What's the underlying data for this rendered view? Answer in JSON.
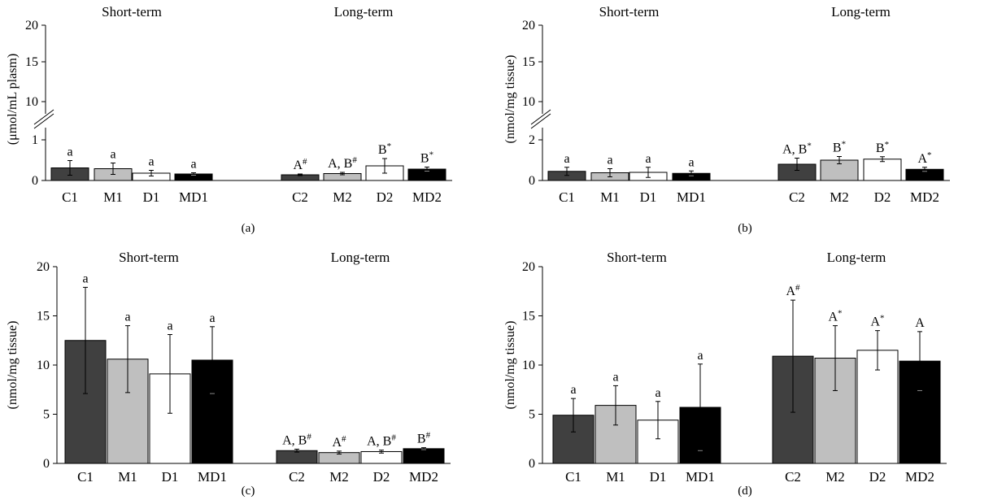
{
  "chart_data": [
    {
      "type": "bar",
      "panel_label": "(a)",
      "ylabel": "(μmol/mL plasm)",
      "broken_axis": true,
      "yticks_lower": [
        "0",
        "1"
      ],
      "yticks_upper": [
        "10",
        "15",
        "20"
      ],
      "group_titles": [
        "Short-term",
        "Long-term"
      ],
      "categories": [
        "C1",
        "M1",
        "D1",
        "MD1",
        "C2",
        "M2",
        "D2",
        "MD2"
      ],
      "values": [
        0.31,
        0.29,
        0.18,
        0.16,
        0.14,
        0.17,
        0.36,
        0.28
      ],
      "errors": [
        0.18,
        0.14,
        0.07,
        0.03,
        0.02,
        0.03,
        0.18,
        0.05
      ],
      "annotations": [
        {
          "text": "a",
          "sup": ""
        },
        {
          "text": "a",
          "sup": ""
        },
        {
          "text": "a",
          "sup": ""
        },
        {
          "text": "a",
          "sup": ""
        },
        {
          "text": "A",
          "sup": "#"
        },
        {
          "text": "A, B",
          "sup": "#"
        },
        {
          "text": "B",
          "sup": "*"
        },
        {
          "text": "B",
          "sup": "*"
        }
      ],
      "colors": [
        "#404040",
        "#bfbfbf",
        "#ffffff",
        "#000000",
        "#404040",
        "#bfbfbf",
        "#ffffff",
        "#000000"
      ]
    },
    {
      "type": "bar",
      "panel_label": "(b)",
      "ylabel": "(nmol/mg tissue)",
      "broken_axis": true,
      "yticks_lower": [
        "0",
        "2"
      ],
      "yticks_upper": [
        "10",
        "15",
        "20"
      ],
      "group_titles": [
        "Short-term",
        "Long-term"
      ],
      "categories": [
        "C1",
        "M1",
        "D1",
        "MD1",
        "C2",
        "M2",
        "D2",
        "MD2"
      ],
      "values": [
        0.45,
        0.38,
        0.4,
        0.35,
        0.8,
        1.0,
        1.05,
        0.55
      ],
      "errors": [
        0.2,
        0.2,
        0.25,
        0.12,
        0.3,
        0.18,
        0.12,
        0.1
      ],
      "annotations": [
        {
          "text": "a",
          "sup": ""
        },
        {
          "text": "a",
          "sup": ""
        },
        {
          "text": "a",
          "sup": ""
        },
        {
          "text": "a",
          "sup": ""
        },
        {
          "text": "A, B",
          "sup": "*"
        },
        {
          "text": "B",
          "sup": "*"
        },
        {
          "text": "B",
          "sup": "*"
        },
        {
          "text": "A",
          "sup": "*"
        }
      ],
      "colors": [
        "#404040",
        "#bfbfbf",
        "#ffffff",
        "#000000",
        "#404040",
        "#bfbfbf",
        "#ffffff",
        "#000000"
      ]
    },
    {
      "type": "bar",
      "panel_label": "(c)",
      "ylabel": "(nmol/mg tissue)",
      "broken_axis": false,
      "ylim": [
        0,
        20
      ],
      "yticks": [
        "0",
        "5",
        "10",
        "15",
        "20"
      ],
      "group_titles": [
        "Short-term",
        "Long-term"
      ],
      "categories": [
        "C1",
        "M1",
        "D1",
        "MD1",
        "C2",
        "M2",
        "D2",
        "MD2"
      ],
      "values": [
        12.5,
        10.6,
        9.1,
        10.5,
        1.3,
        1.1,
        1.2,
        1.5
      ],
      "errors": [
        5.4,
        3.4,
        4.0,
        3.4,
        0.15,
        0.15,
        0.15,
        0.1
      ],
      "annotations": [
        {
          "text": "a",
          "sup": ""
        },
        {
          "text": "a",
          "sup": ""
        },
        {
          "text": "a",
          "sup": ""
        },
        {
          "text": "a",
          "sup": ""
        },
        {
          "text": "A, B",
          "sup": "#"
        },
        {
          "text": "A",
          "sup": "#"
        },
        {
          "text": "A, B",
          "sup": "#"
        },
        {
          "text": "B",
          "sup": "#"
        }
      ],
      "colors": [
        "#404040",
        "#bfbfbf",
        "#ffffff",
        "#000000",
        "#404040",
        "#bfbfbf",
        "#ffffff",
        "#000000"
      ]
    },
    {
      "type": "bar",
      "panel_label": "(d)",
      "ylabel": "(nmol/mg tissue)",
      "broken_axis": false,
      "ylim": [
        0,
        20
      ],
      "yticks": [
        "0",
        "5",
        "10",
        "15",
        "20"
      ],
      "group_titles": [
        "Short-term",
        "Long-term"
      ],
      "categories": [
        "C1",
        "M1",
        "D1",
        "MD1",
        "C2",
        "M2",
        "D2",
        "MD2"
      ],
      "values": [
        4.9,
        5.9,
        4.4,
        5.7,
        10.9,
        10.7,
        11.5,
        10.4
      ],
      "errors": [
        1.7,
        2.0,
        1.9,
        4.4,
        5.7,
        3.3,
        2.0,
        3.0
      ],
      "annotations": [
        {
          "text": "a",
          "sup": ""
        },
        {
          "text": "a",
          "sup": ""
        },
        {
          "text": "a",
          "sup": ""
        },
        {
          "text": "a",
          "sup": ""
        },
        {
          "text": "A",
          "sup": "#"
        },
        {
          "text": "A",
          "sup": "*"
        },
        {
          "text": "A",
          "sup": "*"
        },
        {
          "text": "A",
          "sup": ""
        }
      ],
      "colors": [
        "#404040",
        "#bfbfbf",
        "#ffffff",
        "#000000",
        "#404040",
        "#bfbfbf",
        "#ffffff",
        "#000000"
      ]
    }
  ]
}
